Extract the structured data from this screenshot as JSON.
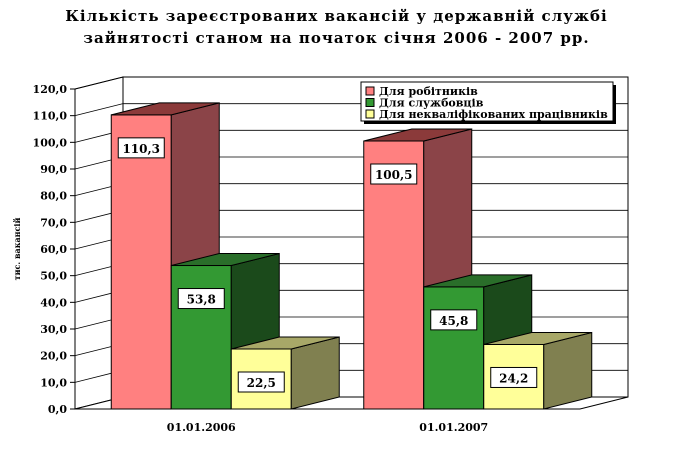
{
  "title_lines": [
    "Кількість зареєстрованих вакансій у державній службі",
    "зайнятості станом на початок січня 2006 - 2007 рр."
  ],
  "chart_data": {
    "type": "bar",
    "title": "Кількість зареєстрованих вакансій у державній службі зайнятості станом на початок січня 2006 - 2007 рр.",
    "ylabel": "тис. вакансій",
    "xlabel": "",
    "categories": [
      "01.01.2006",
      "01.01.2007"
    ],
    "series": [
      {
        "name": "Для робітників",
        "values": [
          110.3,
          100.5
        ],
        "color": "#ff8080",
        "side": "#8b4448",
        "top": "#8b3a3a",
        "label_text": [
          "110,3",
          "100,5"
        ]
      },
      {
        "name": "Для службовців",
        "values": [
          53.8,
          45.8
        ],
        "color": "#339933",
        "side": "#1b4a1b",
        "top": "#2a6e2a",
        "label_text": [
          "53,8",
          "45,8"
        ]
      },
      {
        "name": "Для некваліфікованих працівників",
        "values": [
          22.5,
          24.2
        ],
        "color": "#ffff99",
        "side": "#808050",
        "top": "#a8a868",
        "label_text": [
          "22,5",
          "24,2"
        ]
      }
    ],
    "ylim": [
      0,
      120
    ],
    "yticks": [
      "0,0",
      "10,0",
      "20,0",
      "30,0",
      "40,0",
      "50,0",
      "60,0",
      "70,0",
      "80,0",
      "90,0",
      "100,0",
      "110,0",
      "120,0"
    ],
    "grid": true,
    "legend_position": "top-right",
    "projection": "3d"
  }
}
